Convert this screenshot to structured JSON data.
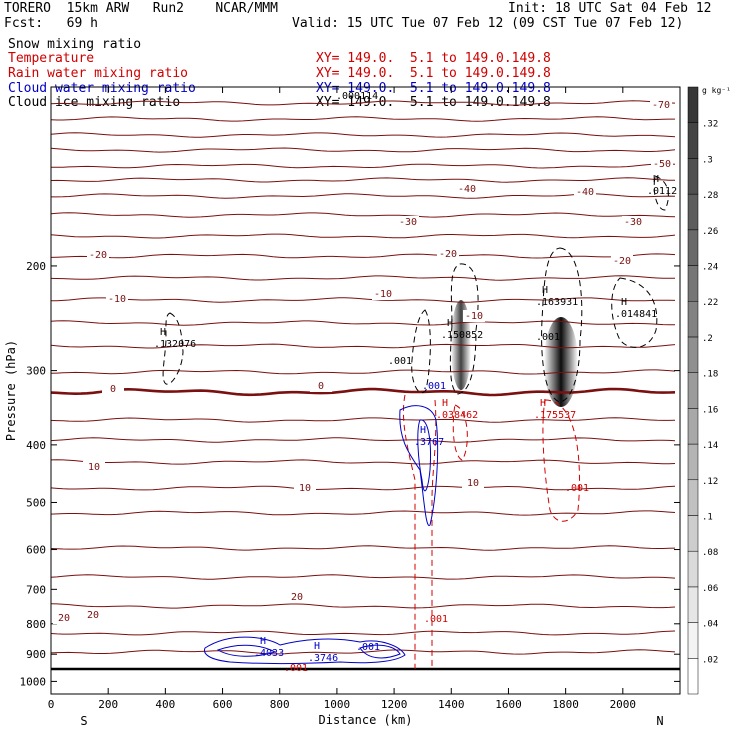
{
  "header": {
    "title": "TORERO  15km ARW   Run2    NCAR/MMM",
    "init": "Init: 18 UTC Sat 04 Feb 12",
    "fcst": "Fcst:   69 h",
    "valid": "Valid: 15 UTC Tue 07 Feb 12 (09 CST Tue 07 Feb 12)"
  },
  "fields": [
    {
      "name": "Snow mixing ratio",
      "xy": "",
      "color": "#000000"
    },
    {
      "name": "Temperature",
      "xy": "XY= 149.0.  5.1 to 149.0.149.8",
      "color": "#d00000"
    },
    {
      "name": "Rain water mixing ratio",
      "xy": "XY= 149.0.  5.1 to 149.0.149.8",
      "color": "#d00000"
    },
    {
      "name": "Cloud water mixing ratio",
      "xy": "XY= 149.0.  5.1 to 149.0.149.8",
      "color": "#0000c8"
    },
    {
      "name": "Cloud ice mixing ratio",
      "xy": "XY= 149.0.  5.1 to 149.0.149.8",
      "color": "#000000"
    }
  ],
  "chart_data": {
    "type": "cross-section contour",
    "xlabel": "Distance (km)",
    "ylabel": "Pressure (hPa)",
    "x_ticks": [
      0,
      200,
      400,
      600,
      800,
      1000,
      1200,
      1400,
      1600,
      1800,
      2000
    ],
    "y_ticks": [
      200,
      300,
      400,
      500,
      600,
      700,
      800,
      900,
      1000
    ],
    "xlim": [
      0,
      2200
    ],
    "ylim": [
      1050,
      100
    ],
    "y_scale": "log",
    "endpoints": {
      "left": "S",
      "right": "N"
    },
    "colorbar": {
      "unit": "g kg⁻¹",
      "ticks": [
        ".02",
        ".04",
        ".06",
        ".08",
        ".1",
        ".12",
        ".14",
        ".16",
        ".18",
        ".2",
        ".22",
        ".24",
        ".26",
        ".28",
        ".3",
        ".32"
      ]
    },
    "temperature_labels": [
      "-70",
      "-50",
      "-40",
      "-40",
      "-30",
      "-30",
      "-20",
      "-20",
      "-20",
      "-10",
      "-10",
      "-10",
      "0",
      "0",
      "10",
      "10",
      "10",
      "20",
      "20",
      "20"
    ],
    "maxima": [
      {
        "label": "H",
        "value": ".132076",
        "color": "#000000"
      },
      {
        "label": "H",
        "value": ".150852",
        "color": "#000000"
      },
      {
        "label": "H",
        "value": ".163931",
        "color": "#000000"
      },
      {
        "label": "H",
        "value": ".014841",
        "color": "#000000"
      },
      {
        "label": "H",
        "value": ".0112",
        "color": "#000000"
      },
      {
        "label": "H",
        "value": ".038462",
        "color": "#d00000"
      },
      {
        "label": "H",
        "value": ".175537",
        "color": "#d00000"
      },
      {
        "label": "H",
        "value": ".3767",
        "color": "#0000c8"
      },
      {
        "label": "H",
        "value": ".4033",
        "color": "#0000c8"
      },
      {
        "label": "H",
        "value": ".3746",
        "color": "#0000c8"
      }
    ],
    "contour_labels": [
      ".001",
      ".001",
      ".001",
      ".001",
      ".001",
      ".001",
      ".001",
      ".000114"
    ],
    "grid": false
  }
}
